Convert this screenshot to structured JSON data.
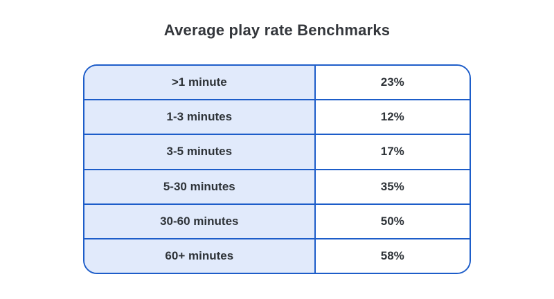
{
  "title": "Average play rate Benchmarks",
  "colors": {
    "border": "#1d5dc9",
    "label_column_bg": "#e1eafb",
    "value_column_bg": "#ffffff",
    "text": "#2e3338"
  },
  "chart_data": {
    "type": "table",
    "title": "Average play rate Benchmarks",
    "rows": [
      {
        "label": ">1 minute",
        "value": "23%"
      },
      {
        "label": "1-3 minutes",
        "value": "12%"
      },
      {
        "label": "3-5 minutes",
        "value": "17%"
      },
      {
        "label": "5-30 minutes",
        "value": "35%"
      },
      {
        "label": "30-60 minutes",
        "value": "50%"
      },
      {
        "label": "60+ minutes",
        "value": "58%"
      }
    ],
    "values_numeric": [
      23,
      12,
      17,
      35,
      50,
      58
    ],
    "layout": {
      "label_column_width_pct": 60,
      "value_column_width_pct": 40,
      "corner_radius_px": 20
    }
  }
}
